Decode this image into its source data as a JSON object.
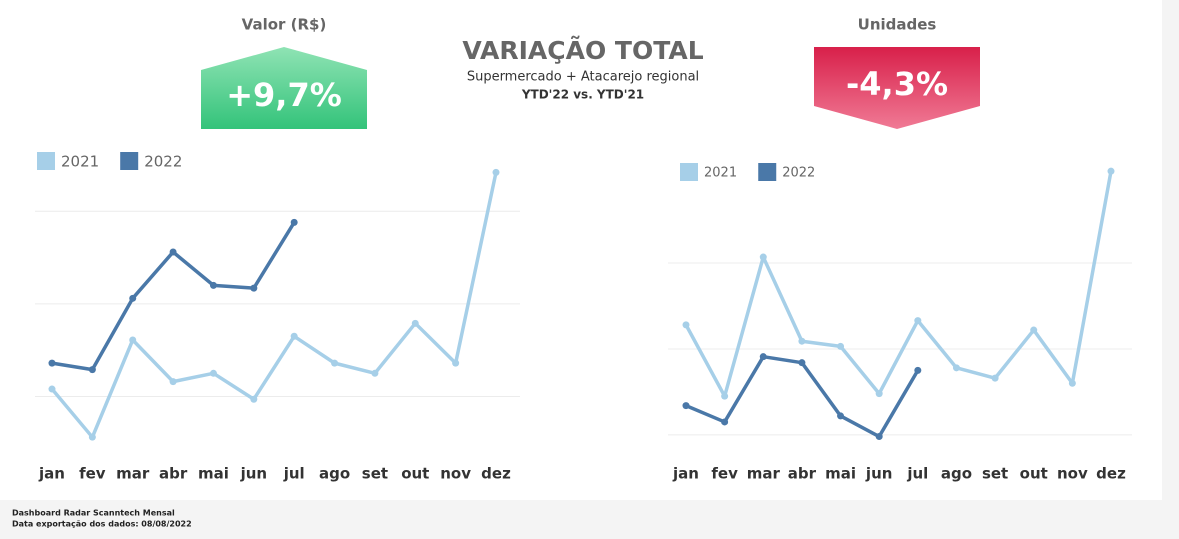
{
  "title": "VARIAÇÃO TOTAL",
  "subtitle": "Supermercado +  Atacarejo regional",
  "period": "YTD'22 vs. YTD'21",
  "kpis": [
    {
      "title": "Valor (R$)",
      "change": {
        "value": 9.7,
        "label": "+9,7%"
      }
    },
    {
      "title": "Unidades",
      "change": {
        "value": -4.3,
        "label": "-4,3%"
      }
    }
  ],
  "footer": [
    "Dashboard Radar Scanntech Mensal",
    "Data exportação dos dados: 08/08/2022"
  ],
  "chart_data": [
    {
      "type": "line",
      "categories": [
        "jan",
        "fev",
        "mar",
        "abr",
        "mai",
        "jun",
        "jul",
        "ago",
        "set",
        "out",
        "nov",
        "dez"
      ],
      "series": [
        {
          "name": "2021",
          "color": "#a6cfe8",
          "values": [
            10.8,
            5.6,
            16.1,
            11.6,
            12.5,
            9.7,
            16.5,
            13.6,
            12.5,
            17.9,
            13.6,
            34.2
          ]
        },
        {
          "name": "2022",
          "color": "#4a78a8",
          "values": [
            13.6,
            12.9,
            20.6,
            25.6,
            22.0,
            21.7,
            28.8,
            null,
            null,
            null,
            null,
            null
          ]
        }
      ],
      "ylim": [
        4,
        35
      ],
      "yticks": [
        10,
        20,
        30
      ],
      "show_ytick_labels": false,
      "grid": true,
      "legend": "top-left"
    },
    {
      "type": "line",
      "categories": [
        "jan",
        "fev",
        "mar",
        "abr",
        "mai",
        "jun",
        "jul",
        "ago",
        "set",
        "out",
        "nov",
        "dez"
      ],
      "series": [
        {
          "name": "2021",
          "color": "#a6cfe8",
          "values": [
            22.8,
            14.5,
            30.7,
            20.9,
            20.3,
            14.8,
            23.3,
            17.8,
            16.6,
            22.2,
            16.0,
            40.7
          ]
        },
        {
          "name": "2022",
          "color": "#4a78a8",
          "values": [
            13.4,
            11.5,
            19.1,
            18.4,
            12.2,
            9.8,
            17.5,
            null,
            null,
            null,
            null,
            null
          ]
        }
      ],
      "ylim": [
        8,
        42
      ],
      "yticks": [
        10,
        20,
        30
      ],
      "show_ytick_labels": false,
      "grid": true,
      "legend": "top-left"
    }
  ]
}
